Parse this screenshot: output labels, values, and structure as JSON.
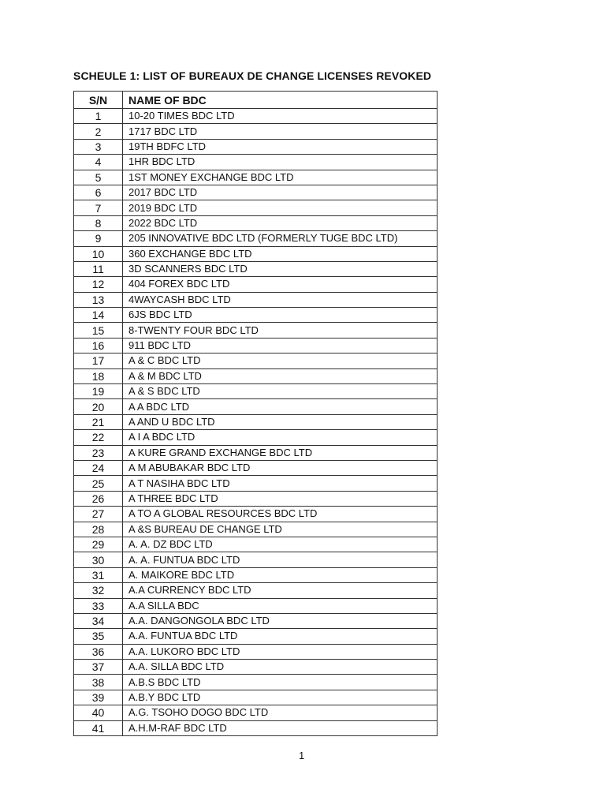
{
  "title": "SCHEULE 1: LIST OF BUREAUX DE CHANGE LICENSES REVOKED",
  "table": {
    "headers": {
      "sn": "S/N",
      "name": "NAME OF BDC"
    },
    "rows": [
      [
        "1",
        "10-20 TIMES BDC LTD"
      ],
      [
        "2",
        "1717 BDC LTD"
      ],
      [
        "3",
        "19TH BDFC LTD"
      ],
      [
        "4",
        "1HR BDC LTD"
      ],
      [
        "5",
        "1ST MONEY EXCHANGE BDC LTD"
      ],
      [
        "6",
        "2017 BDC LTD"
      ],
      [
        "7",
        "2019 BDC LTD"
      ],
      [
        "8",
        "2022 BDC LTD"
      ],
      [
        "9",
        "205 INNOVATIVE BDC LTD (FORMERLY TUGE BDC LTD)"
      ],
      [
        "10",
        "360 EXCHANGE BDC LTD"
      ],
      [
        "11",
        "3D SCANNERS BDC LTD"
      ],
      [
        "12",
        "404 FOREX BDC LTD"
      ],
      [
        "13",
        "4WAYCASH BDC LTD"
      ],
      [
        "14",
        "6JS BDC LTD"
      ],
      [
        "15",
        "8-TWENTY FOUR BDC LTD"
      ],
      [
        "16",
        "911 BDC LTD"
      ],
      [
        "17",
        "A & C BDC LTD"
      ],
      [
        "18",
        "A & M BDC LTD"
      ],
      [
        "19",
        "A & S BDC LTD"
      ],
      [
        "20",
        "A A BDC LTD"
      ],
      [
        "21",
        "A AND U BDC LTD"
      ],
      [
        "22",
        "A I A BDC LTD"
      ],
      [
        "23",
        "A KURE GRAND EXCHANGE BDC LTD"
      ],
      [
        "24",
        "A M ABUBAKAR BDC LTD"
      ],
      [
        "25",
        "A T NASIHA BDC LTD"
      ],
      [
        "26",
        "A THREE BDC LTD"
      ],
      [
        "27",
        "A TO A GLOBAL RESOURCES BDC LTD"
      ],
      [
        "28",
        "A &S BUREAU DE CHANGE LTD"
      ],
      [
        "29",
        "A. A. DZ BDC LTD"
      ],
      [
        "30",
        "A. A. FUNTUA BDC LTD"
      ],
      [
        "31",
        "A. MAIKORE BDC LTD"
      ],
      [
        "32",
        "A.A CURRENCY BDC LTD"
      ],
      [
        "33",
        "A.A SILLA BDC"
      ],
      [
        "34",
        "A.A. DANGONGOLA BDC LTD"
      ],
      [
        "35",
        "A.A. FUNTUA BDC LTD"
      ],
      [
        "36",
        "A.A. LUKORO BDC LTD"
      ],
      [
        "37",
        "A.A. SILLA BDC LTD"
      ],
      [
        "38",
        "A.B.S BDC LTD"
      ],
      [
        "39",
        "A.B.Y BDC LTD"
      ],
      [
        "40",
        "A.G. TSOHO DOGO BDC LTD"
      ],
      [
        "41",
        "A.H.M-RAF BDC LTD"
      ]
    ]
  },
  "page_number": "1"
}
